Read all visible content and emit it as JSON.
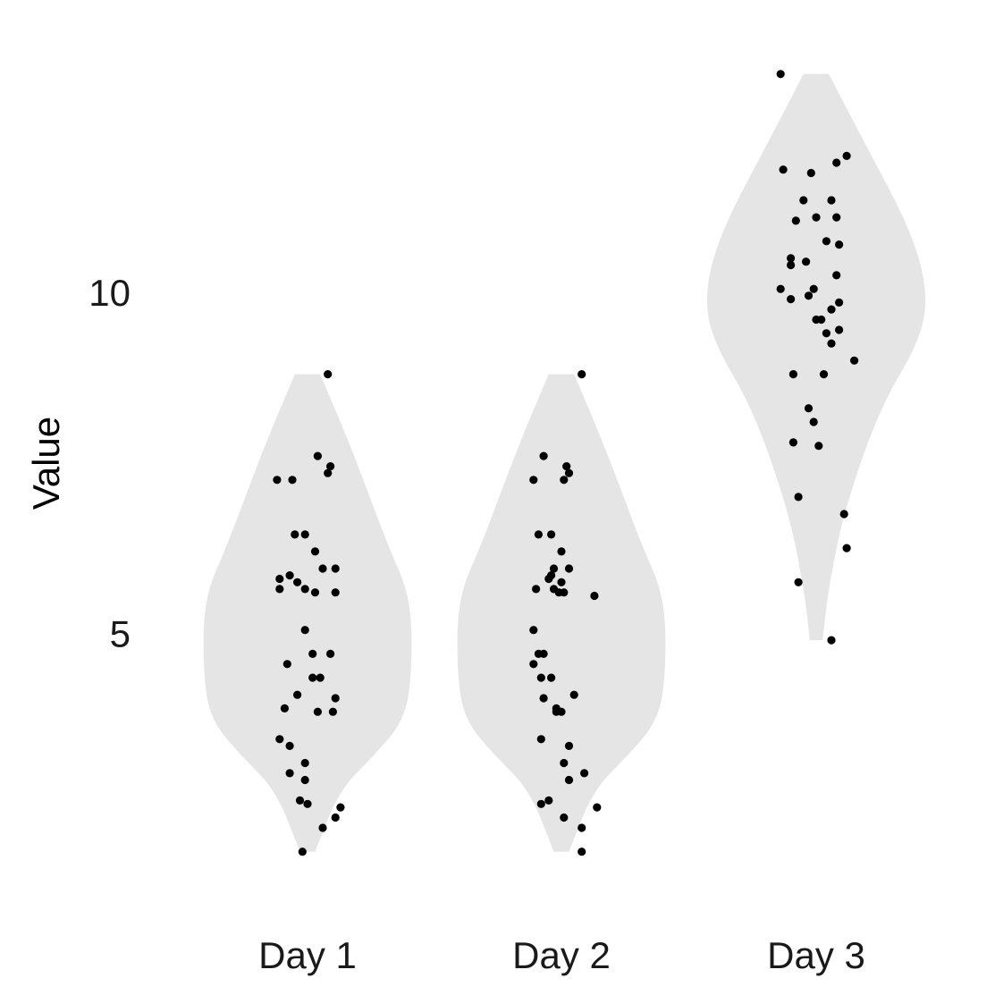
{
  "chart_data": {
    "type": "violin",
    "title": "",
    "xlabel": "",
    "ylabel": "Value",
    "categories": [
      "Day 1",
      "Day 2",
      "Day 3"
    ],
    "yticks": [
      5,
      10
    ],
    "ylim": [
      1.5,
      13.7
    ],
    "violin_color": "#e5e5e5",
    "point_color": "#000000",
    "grid": false,
    "legend": "none",
    "violins": [
      {
        "category": "Day 1",
        "y": [
          1.8,
          2.7,
          3.2,
          3.7,
          4.3,
          5.5,
          6.3,
          7.7,
          8.8
        ],
        "width": [
          0.06,
          0.25,
          0.52,
          0.75,
          0.82,
          0.82,
          0.63,
          0.35,
          0.1
        ]
      },
      {
        "category": "Day 2",
        "y": [
          1.8,
          2.7,
          3.2,
          3.7,
          4.3,
          5.5,
          6.3,
          7.7,
          8.8
        ],
        "width": [
          0.06,
          0.25,
          0.52,
          0.75,
          0.82,
          0.82,
          0.63,
          0.35,
          0.1
        ]
      },
      {
        "category": "Day 3",
        "y": [
          4.9,
          5.7,
          6.8,
          8.3,
          9.3,
          10.0,
          10.9,
          12.3,
          13.2
        ],
        "width": [
          0.05,
          0.1,
          0.22,
          0.5,
          0.82,
          0.88,
          0.75,
          0.35,
          0.1
        ]
      }
    ],
    "points": [
      {
        "category": "Day 1",
        "values": [
          {
            "offset": 0.08,
            "y": 8.8
          },
          {
            "offset": -0.02,
            "y": 1.8
          },
          {
            "offset": 0.04,
            "y": 7.6
          },
          {
            "offset": 0.09,
            "y": 7.45
          },
          {
            "offset": 0.08,
            "y": 7.35
          },
          {
            "offset": -0.12,
            "y": 7.25
          },
          {
            "offset": -0.06,
            "y": 7.25
          },
          {
            "offset": -0.05,
            "y": 6.45
          },
          {
            "offset": -0.01,
            "y": 6.45
          },
          {
            "offset": 0.03,
            "y": 6.2
          },
          {
            "offset": 0.06,
            "y": 5.95
          },
          {
            "offset": 0.11,
            "y": 5.95
          },
          {
            "offset": -0.07,
            "y": 5.85
          },
          {
            "offset": -0.11,
            "y": 5.8
          },
          {
            "offset": -0.04,
            "y": 5.75
          },
          {
            "offset": -0.11,
            "y": 5.65
          },
          {
            "offset": -0.01,
            "y": 5.65
          },
          {
            "offset": 0.03,
            "y": 5.6
          },
          {
            "offset": 0.11,
            "y": 5.6
          },
          {
            "offset": -0.01,
            "y": 5.05
          },
          {
            "offset": 0.02,
            "y": 4.7
          },
          {
            "offset": 0.09,
            "y": 4.7
          },
          {
            "offset": -0.08,
            "y": 4.55
          },
          {
            "offset": 0.02,
            "y": 4.35
          },
          {
            "offset": 0.05,
            "y": 4.35
          },
          {
            "offset": -0.04,
            "y": 4.1
          },
          {
            "offset": 0.11,
            "y": 4.05
          },
          {
            "offset": -0.09,
            "y": 3.9
          },
          {
            "offset": 0.04,
            "y": 3.85
          },
          {
            "offset": 0.1,
            "y": 3.85
          },
          {
            "offset": -0.11,
            "y": 3.45
          },
          {
            "offset": -0.07,
            "y": 3.35
          },
          {
            "offset": -0.01,
            "y": 3.1
          },
          {
            "offset": -0.07,
            "y": 2.95
          },
          {
            "offset": -0.01,
            "y": 2.85
          },
          {
            "offset": -0.03,
            "y": 2.55
          },
          {
            "offset": 0.0,
            "y": 2.5
          },
          {
            "offset": 0.13,
            "y": 2.45
          },
          {
            "offset": 0.11,
            "y": 2.3
          },
          {
            "offset": 0.06,
            "y": 2.15
          }
        ]
      },
      {
        "category": "Day 2",
        "values": [
          {
            "offset": 0.08,
            "y": 8.8
          },
          {
            "offset": 0.08,
            "y": 1.8
          },
          {
            "offset": -0.07,
            "y": 7.6
          },
          {
            "offset": 0.02,
            "y": 7.45
          },
          {
            "offset": 0.03,
            "y": 7.35
          },
          {
            "offset": -0.11,
            "y": 7.25
          },
          {
            "offset": 0.01,
            "y": 7.25
          },
          {
            "offset": -0.09,
            "y": 6.45
          },
          {
            "offset": -0.04,
            "y": 6.45
          },
          {
            "offset": 0.0,
            "y": 6.2
          },
          {
            "offset": -0.03,
            "y": 5.95
          },
          {
            "offset": 0.03,
            "y": 5.95
          },
          {
            "offset": -0.04,
            "y": 5.85
          },
          {
            "offset": -0.05,
            "y": 5.8
          },
          {
            "offset": 0.0,
            "y": 5.75
          },
          {
            "offset": -0.1,
            "y": 5.65
          },
          {
            "offset": -0.03,
            "y": 5.65
          },
          {
            "offset": -0.01,
            "y": 5.6
          },
          {
            "offset": 0.01,
            "y": 5.6
          },
          {
            "offset": 0.13,
            "y": 5.55
          },
          {
            "offset": -0.11,
            "y": 5.05
          },
          {
            "offset": -0.09,
            "y": 4.7
          },
          {
            "offset": -0.07,
            "y": 4.7
          },
          {
            "offset": -0.11,
            "y": 4.55
          },
          {
            "offset": -0.04,
            "y": 4.35
          },
          {
            "offset": -0.08,
            "y": 4.35
          },
          {
            "offset": 0.05,
            "y": 4.1
          },
          {
            "offset": -0.07,
            "y": 4.05
          },
          {
            "offset": -0.02,
            "y": 3.9
          },
          {
            "offset": -0.02,
            "y": 3.85
          },
          {
            "offset": 0.0,
            "y": 3.85
          },
          {
            "offset": -0.08,
            "y": 3.45
          },
          {
            "offset": 0.03,
            "y": 3.35
          },
          {
            "offset": 0.01,
            "y": 3.1
          },
          {
            "offset": 0.09,
            "y": 2.95
          },
          {
            "offset": 0.03,
            "y": 2.85
          },
          {
            "offset": -0.05,
            "y": 2.55
          },
          {
            "offset": -0.08,
            "y": 2.5
          },
          {
            "offset": 0.14,
            "y": 2.45
          },
          {
            "offset": 0.01,
            "y": 2.3
          },
          {
            "offset": 0.08,
            "y": 2.15
          }
        ]
      },
      {
        "category": "Day 3",
        "values": [
          {
            "offset": -0.14,
            "y": 13.2
          },
          {
            "offset": 0.06,
            "y": 4.9
          },
          {
            "offset": 0.12,
            "y": 12.0
          },
          {
            "offset": 0.08,
            "y": 11.9
          },
          {
            "offset": -0.13,
            "y": 11.8
          },
          {
            "offset": -0.02,
            "y": 11.75
          },
          {
            "offset": -0.05,
            "y": 11.35
          },
          {
            "offset": 0.06,
            "y": 11.35
          },
          {
            "offset": 0.0,
            "y": 11.1
          },
          {
            "offset": 0.08,
            "y": 11.1
          },
          {
            "offset": -0.08,
            "y": 11.05
          },
          {
            "offset": 0.04,
            "y": 10.75
          },
          {
            "offset": 0.09,
            "y": 10.7
          },
          {
            "offset": -0.1,
            "y": 10.5
          },
          {
            "offset": -0.04,
            "y": 10.45
          },
          {
            "offset": -0.1,
            "y": 10.4
          },
          {
            "offset": 0.08,
            "y": 10.25
          },
          {
            "offset": -0.14,
            "y": 10.05
          },
          {
            "offset": -0.01,
            "y": 10.05
          },
          {
            "offset": -0.03,
            "y": 9.95
          },
          {
            "offset": -0.1,
            "y": 9.9
          },
          {
            "offset": 0.09,
            "y": 9.85
          },
          {
            "offset": 0.06,
            "y": 9.75
          },
          {
            "offset": 0.0,
            "y": 9.6
          },
          {
            "offset": 0.02,
            "y": 9.6
          },
          {
            "offset": 0.09,
            "y": 9.45
          },
          {
            "offset": 0.04,
            "y": 9.4
          },
          {
            "offset": 0.06,
            "y": 9.25
          },
          {
            "offset": 0.15,
            "y": 9.0
          },
          {
            "offset": -0.09,
            "y": 8.8
          },
          {
            "offset": 0.03,
            "y": 8.8
          },
          {
            "offset": -0.03,
            "y": 8.3
          },
          {
            "offset": -0.01,
            "y": 8.1
          },
          {
            "offset": -0.09,
            "y": 7.8
          },
          {
            "offset": 0.01,
            "y": 7.75
          },
          {
            "offset": -0.07,
            "y": 7.0
          },
          {
            "offset": 0.11,
            "y": 6.75
          },
          {
            "offset": 0.12,
            "y": 6.25
          },
          {
            "offset": -0.07,
            "y": 5.75
          }
        ]
      }
    ]
  }
}
